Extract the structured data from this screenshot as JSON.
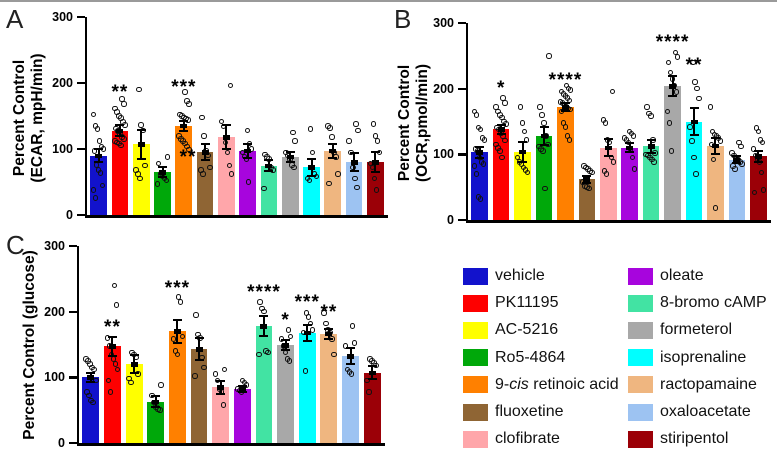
{
  "chart_data": [
    {
      "type": "bar",
      "panel_label": "A",
      "title": "",
      "xlabel": "",
      "ylabel": "Percent Control (ECAR, mpH/min)",
      "ylabel_lines": [
        "Percent Control",
        "(ECAR, mpH/min)"
      ],
      "ylim": [
        0,
        300
      ],
      "yticks": [
        0,
        100,
        200,
        300
      ],
      "grid": false,
      "x_tick_labels_shown": false,
      "categories": [
        "vehicle",
        "PK11195",
        "AC-5216",
        "Ro5-4864",
        "9-cis retinoic acid",
        "fluoxetine",
        "clofibrate",
        "oleate",
        "8-bromo cAMP",
        "formeterol",
        "isoprenaline",
        "ractopamaine",
        "oxaloacetate",
        "stiripentol"
      ],
      "values": [
        90,
        128,
        107,
        65,
        135,
        95,
        118,
        97,
        75,
        88,
        72,
        97,
        80,
        80
      ],
      "errors": [
        10,
        8,
        22,
        8,
        8,
        12,
        18,
        10,
        8,
        8,
        13,
        10,
        14,
        15
      ],
      "significance": [
        null,
        {
          "text": "**",
          "y": 182
        },
        null,
        null,
        {
          "text": "***",
          "y": 190
        },
        {
          "text": "**",
          "y": 84,
          "dx": -17
        },
        null,
        null,
        null,
        null,
        null,
        null,
        null,
        null
      ],
      "points": [
        [
          152,
          135,
          130,
          112,
          104,
          100,
          97,
          76,
          68,
          64,
          45,
          38,
          26
        ],
        [
          176,
          168,
          161,
          156,
          150,
          147,
          141,
          136,
          131,
          127,
          122,
          118,
          115,
          112,
          110,
          108,
          105
        ],
        [
          190,
          136,
          128,
          75,
          68,
          62,
          55
        ],
        [
          88,
          78,
          62,
          58,
          55,
          52,
          47
        ],
        [
          186,
          173,
          168,
          152,
          150,
          148,
          146,
          144,
          120,
          115,
          112,
          108,
          104,
          99
        ],
        [
          148,
          120,
          98,
          90,
          72,
          68,
          62
        ],
        [
          196,
          142,
          134,
          110,
          95,
          75,
          62
        ],
        [
          128,
          108,
          100,
          95,
          89,
          84,
          50
        ],
        [
          92,
          88,
          85,
          72,
          68,
          40
        ],
        [
          125,
          112,
          95,
          90,
          85,
          76,
          72
        ],
        [
          130,
          95,
          62,
          58,
          55,
          52
        ],
        [
          135,
          132,
          118,
          95,
          88,
          62,
          48
        ],
        [
          138,
          128,
          112,
          95,
          72,
          55,
          42
        ],
        [
          138,
          120,
          112,
          95,
          78,
          72,
          55,
          38
        ]
      ]
    },
    {
      "type": "bar",
      "panel_label": "B",
      "title": "",
      "xlabel": "",
      "ylabel": "Percent Control (OCR,pmol/min)",
      "ylabel_lines": [
        "Percent Control",
        "(OCR,pmol/min)"
      ],
      "ylim": [
        0,
        300
      ],
      "yticks": [
        0,
        100,
        200,
        300
      ],
      "grid": false,
      "x_tick_labels_shown": false,
      "categories": [
        "vehicle",
        "PK11195",
        "AC-5216",
        "Ro5-4864",
        "9-cis retinoic acid",
        "fluoxetine",
        "clofibrate",
        "oleate",
        "8-bromo cAMP",
        "formeterol",
        "isoprenaline",
        "ractopamaine",
        "oxaloacetate",
        "stiripentol"
      ],
      "values": [
        103,
        138,
        104,
        128,
        172,
        62,
        110,
        110,
        112,
        204,
        150,
        113,
        92,
        97
      ],
      "errors": [
        8,
        7,
        15,
        14,
        6,
        5,
        13,
        7,
        10,
        15,
        20,
        12,
        5,
        8
      ],
      "significance": [
        null,
        {
          "text": "*",
          "y": 196
        },
        null,
        null,
        {
          "text": "****",
          "y": 208
        },
        null,
        null,
        null,
        null,
        {
          "text": "****",
          "y": 266
        },
        {
          "text": "**",
          "y": 231
        },
        null,
        null,
        null
      ],
      "points": [
        [
          165,
          160,
          141,
          138,
          125,
          122,
          108,
          105,
          95,
          88,
          85,
          82,
          70,
          35,
          32
        ],
        [
          186,
          178,
          172,
          165,
          160,
          156,
          150,
          146,
          141,
          138,
          132,
          128,
          121,
          115,
          110,
          105,
          95
        ],
        [
          172,
          148,
          135,
          122,
          95,
          88,
          85,
          80,
          76,
          72
        ],
        [
          250,
          172,
          160,
          148,
          128,
          115,
          112,
          108,
          105,
          48
        ],
        [
          205,
          200,
          198,
          196,
          192,
          189,
          186,
          182,
          180,
          178,
          175,
          172,
          170,
          168,
          165,
          148,
          142,
          128,
          122
        ],
        [
          82,
          80,
          78,
          75,
          72,
          58,
          52,
          50,
          48
        ],
        [
          196,
          152,
          148,
          122,
          118,
          95,
          88,
          75,
          70
        ],
        [
          135,
          132,
          128,
          125,
          122,
          118,
          108,
          95,
          78
        ],
        [
          172,
          162,
          158,
          122,
          102,
          100,
          98,
          95,
          92,
          88
        ],
        [
          255,
          248,
          240,
          225,
          215,
          205,
          195,
          165,
          148,
          105
        ],
        [
          240,
          210,
          200,
          185,
          142,
          120,
          95,
          70
        ],
        [
          172,
          135,
          130,
          128,
          125,
          120,
          115,
          92,
          18
        ],
        [
          118,
          112,
          102,
          98,
          95,
          92,
          88,
          85,
          82,
          78
        ],
        [
          140,
          135,
          122,
          118,
          108,
          98,
          92,
          88,
          72,
          46,
          42
        ]
      ]
    },
    {
      "type": "bar",
      "panel_label": "C",
      "title": "",
      "xlabel": "",
      "ylabel": "Percent Control (glucose)",
      "ylabel_lines": [
        "Percent Control (glucose)"
      ],
      "ylim": [
        0,
        300
      ],
      "yticks": [
        0,
        100,
        200,
        300
      ],
      "grid": false,
      "x_tick_labels_shown": false,
      "categories": [
        "vehicle",
        "PK11195",
        "AC-5216",
        "Ro5-4864",
        "9-cis retinoic acid",
        "fluoxetine",
        "clofibrate",
        "oleate",
        "8-bromo cAMP",
        "formeterol",
        "isoprenaline",
        "ractopamaine",
        "oxaloacetate",
        "stiripentol"
      ],
      "values": [
        100,
        147,
        120,
        63,
        170,
        143,
        85,
        82,
        178,
        149,
        168,
        166,
        132,
        107
      ],
      "errors": [
        7,
        15,
        14,
        8,
        17,
        17,
        10,
        5,
        15,
        8,
        12,
        8,
        12,
        10
      ],
      "significance": [
        null,
        {
          "text": "**",
          "y": 172
        },
        null,
        null,
        {
          "text": "***",
          "y": 232
        },
        null,
        null,
        null,
        {
          "text": "****",
          "y": 225
        },
        {
          "text": "*",
          "y": 183
        },
        {
          "text": "***",
          "y": 210
        },
        {
          "text": "**",
          "y": 195
        },
        null,
        null
      ],
      "points": [
        [
          128,
          125,
          120,
          115,
          112,
          95,
          78,
          72,
          65,
          62
        ],
        [
          240,
          210,
          160,
          148,
          135,
          128,
          120,
          112,
          95,
          78
        ],
        [
          138,
          135,
          130,
          105,
          98,
          92
        ],
        [
          88,
          72,
          62,
          55,
          52,
          50
        ],
        [
          222,
          215,
          162,
          158,
          140,
          135
        ],
        [
          195,
          165,
          160,
          130,
          115,
          102
        ],
        [
          112,
          105,
          95,
          82,
          78,
          58
        ],
        [
          95,
          92,
          88,
          82,
          80,
          78
        ],
        [
          215,
          205,
          200,
          140,
          138,
          135
        ],
        [
          172,
          162,
          158,
          148,
          138,
          128,
          125
        ],
        [
          198,
          192,
          182,
          172,
          168,
          110
        ],
        [
          198,
          182,
          172,
          168,
          158,
          135
        ],
        [
          178,
          152,
          148,
          112,
          108,
          105
        ],
        [
          128,
          125,
          122,
          118,
          95,
          78
        ]
      ]
    }
  ],
  "colors": {
    "vehicle": "#1212cc",
    "PK11195": "#fe0000",
    "AC-5216": "#ffff00",
    "Ro5-4864": "#00a80a",
    "9-cis retinoic acid": "#ff8000",
    "fluoxetine": "#8f6534",
    "clofibrate": "#ffa6aa",
    "oleate": "#a705dd",
    "8-bromo cAMP": "#42e3a3",
    "formeterol": "#a8a8a8",
    "isoprenaline": "#00ffff",
    "ractopamaine": "#efb680",
    "oxaloacetate": "#9dc3f2",
    "stiripentol": "#9b0007"
  },
  "legend": {
    "columns": [
      [
        {
          "label": "vehicle",
          "color": "#1212cc",
          "parts": [
            {
              "t": "vehicle"
            }
          ]
        },
        {
          "label": "PK11195",
          "color": "#fe0000",
          "parts": [
            {
              "t": "PK11195"
            }
          ]
        },
        {
          "label": "AC-5216",
          "color": "#ffff00",
          "parts": [
            {
              "t": "AC-5216"
            }
          ]
        },
        {
          "label": "Ro5-4864",
          "color": "#00a80a",
          "parts": [
            {
              "t": "Ro5-4864"
            }
          ]
        },
        {
          "label": "9-cis retinoic acid",
          "color": "#ff8000",
          "parts": [
            {
              "t": "9-"
            },
            {
              "t": "cis",
              "i": true
            },
            {
              "t": " retinoic acid"
            }
          ]
        },
        {
          "label": "fluoxetine",
          "color": "#8f6534",
          "parts": [
            {
              "t": "fluoxetine"
            }
          ]
        },
        {
          "label": "clofibrate",
          "color": "#ffa6aa",
          "parts": [
            {
              "t": "clofibrate"
            }
          ]
        }
      ],
      [
        {
          "label": "oleate",
          "color": "#a705dd",
          "parts": [
            {
              "t": "oleate"
            }
          ]
        },
        {
          "label": "8-bromo cAMP",
          "color": "#42e3a3",
          "parts": [
            {
              "t": "8-bromo cAMP"
            }
          ]
        },
        {
          "label": "formeterol",
          "color": "#a8a8a8",
          "parts": [
            {
              "t": "formeterol"
            }
          ]
        },
        {
          "label": "isoprenaline",
          "color": "#00ffff",
          "parts": [
            {
              "t": "isoprenaline"
            }
          ]
        },
        {
          "label": "ractopamaine",
          "color": "#efb680",
          "parts": [
            {
              "t": "ractopamaine"
            }
          ]
        },
        {
          "label": "oxaloacetate",
          "color": "#9dc3f2",
          "parts": [
            {
              "t": "oxaloacetate"
            }
          ]
        },
        {
          "label": "stiripentol",
          "color": "#9b0007",
          "parts": [
            {
              "t": "stiripentol"
            }
          ]
        }
      ]
    ]
  }
}
